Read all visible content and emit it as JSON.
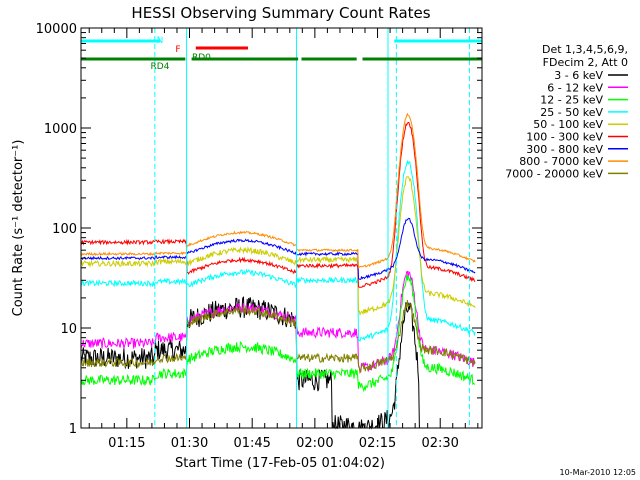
{
  "chart_data": {
    "type": "line",
    "title": "HESSI Observing Summary Count Rates",
    "xlabel": "Start Time (17-Feb-05 01:04:02)",
    "ylabel": "Count Rate (s⁻¹ detector⁻¹)",
    "yscale": "log",
    "ylim": [
      1,
      10000
    ],
    "xlim_minutes": [
      64.03,
      160
    ],
    "x_ticks": [
      "01:15",
      "01:30",
      "01:45",
      "02:00",
      "02:15",
      "02:30"
    ],
    "y_ticks": [
      "1",
      "10",
      "100",
      "1000",
      "10000"
    ],
    "legend_header": [
      "Det 1,3,4,5,6,9,",
      "FDecim 2, Att 0"
    ],
    "legend_position": "top-right",
    "footer_timestamp": "10-Mar-2010 12:05",
    "flags": [
      {
        "label": "N",
        "color": "#00ffff",
        "segments": [
          [
            64,
            83
          ],
          [
            139,
            160
          ]
        ]
      },
      {
        "label": "F",
        "color": "#ff0000",
        "segments": [
          [
            91.5,
            104
          ]
        ]
      },
      {
        "label": "RD0",
        "color": "#008000",
        "segments": [
          [
            64,
            89
          ],
          [
            90.5,
            116
          ],
          [
            116.8,
            130
          ],
          [
            131.4,
            160
          ]
        ]
      },
      {
        "label": "RD4",
        "color": "#008000",
        "segments": []
      }
    ],
    "saa_lines_minutes": [
      64.03,
      81.7,
      139.5,
      157
    ],
    "night_lines_minutes": [
      89.3,
      115.6,
      137.5
    ],
    "series": [
      {
        "name": "3 - 6 keV",
        "color": "#000000"
      },
      {
        "name": "6 - 12 keV",
        "color": "#ff00ff"
      },
      {
        "name": "12 - 25 keV",
        "color": "#00ff00"
      },
      {
        "name": "25 - 50 keV",
        "color": "#00ffff"
      },
      {
        "name": "50 - 100 keV",
        "color": "#cccc00"
      },
      {
        "name": "100 - 300 keV",
        "color": "#ff0000"
      },
      {
        "name": "300 - 800 keV",
        "color": "#0000ff"
      },
      {
        "name": "800 - 7000 keV",
        "color": "#ff8c00"
      },
      {
        "name": "7000 - 20000 keV",
        "color": "#808000"
      }
    ]
  }
}
